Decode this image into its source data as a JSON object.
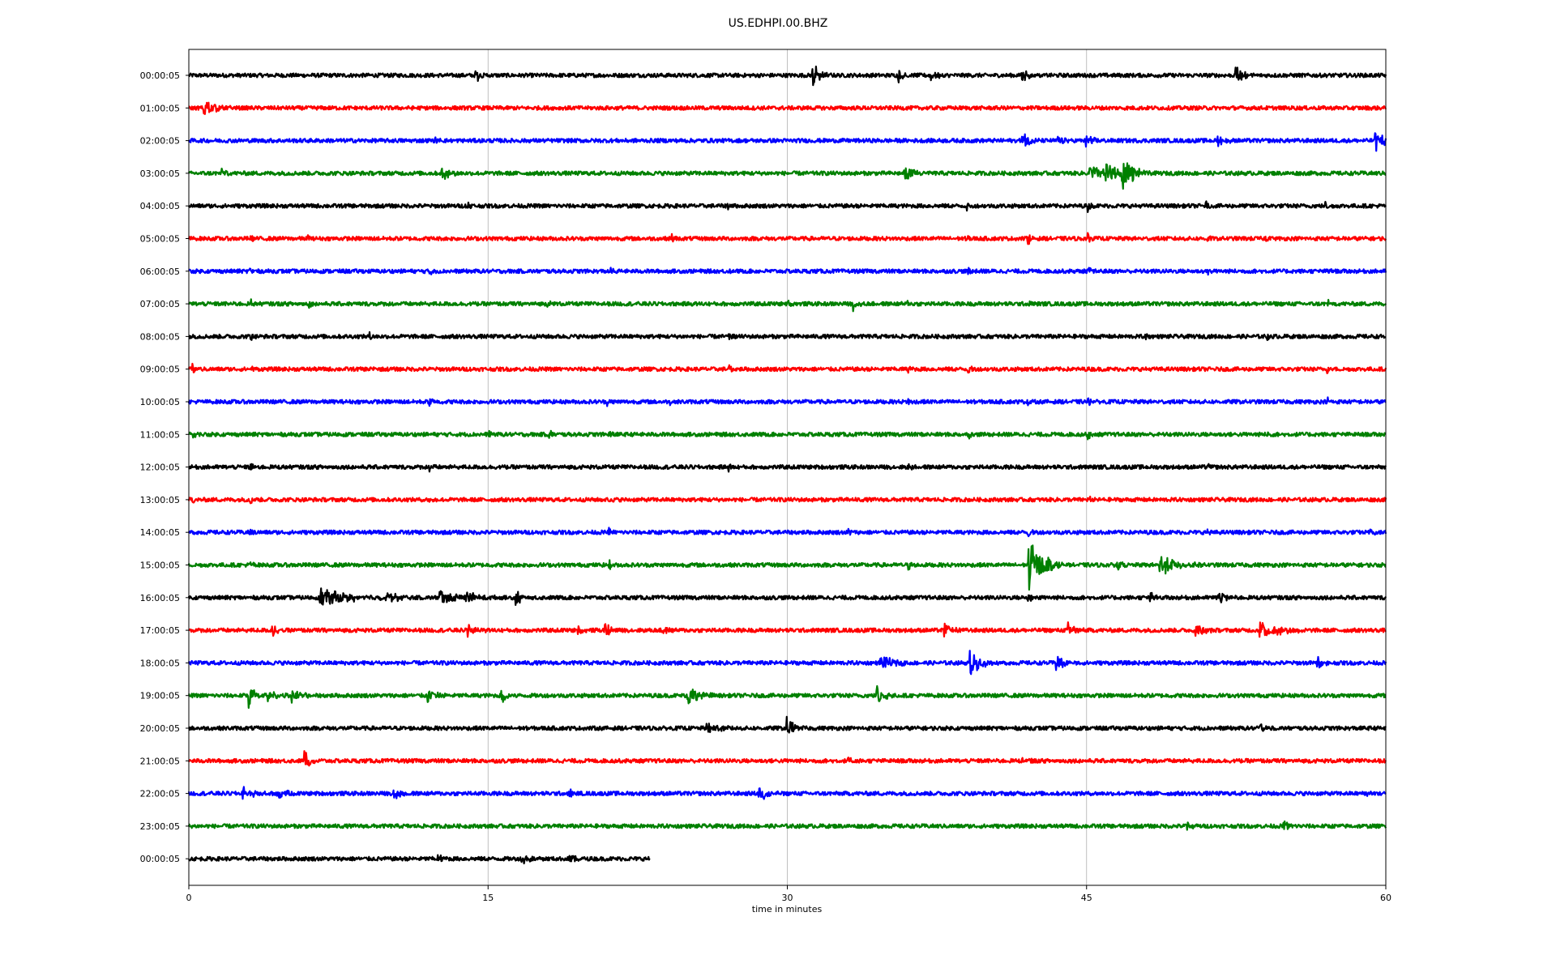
{
  "chart_data": {
    "type": "line",
    "title": "US.EDHPI.00.BHZ",
    "xlabel": "time in minutes",
    "ylabel": "",
    "xlim": [
      0,
      60
    ],
    "xticks": [
      0,
      15,
      30,
      45,
      60
    ],
    "xtick_labels": [
      "0",
      "15",
      "30",
      "45",
      "60"
    ],
    "grid": "vertical gridlines at x ticks",
    "colors": [
      "#000000",
      "#ff0000",
      "#0000ff",
      "#008000"
    ],
    "traces": [
      {
        "label": "00:00:05",
        "color": "#000000",
        "x_end": 60,
        "noise": 0.35,
        "events": [
          [
            14.4,
            1.2,
            0.2
          ],
          [
            31.3,
            2.2,
            0.3
          ],
          [
            35.6,
            1.0,
            0.3
          ],
          [
            37.2,
            1.0,
            0.3
          ],
          [
            41.7,
            1.0,
            0.4
          ],
          [
            52.5,
            1.6,
            0.3
          ]
        ]
      },
      {
        "label": "01:00:05",
        "color": "#ff0000",
        "x_end": 60,
        "noise": 0.35,
        "events": [
          [
            0.8,
            1.8,
            0.5
          ]
        ]
      },
      {
        "label": "02:00:05",
        "color": "#0000ff",
        "x_end": 60,
        "noise": 0.35,
        "events": [
          [
            12.4,
            0.8,
            0.1
          ],
          [
            41.8,
            1.4,
            0.3
          ],
          [
            43.6,
            0.9,
            0.2
          ],
          [
            45.0,
            1.4,
            0.2
          ],
          [
            51.6,
            1.2,
            0.3
          ],
          [
            59.5,
            1.8,
            0.4
          ]
        ]
      },
      {
        "label": "03:00:05",
        "color": "#008000",
        "x_end": 60,
        "noise": 0.35,
        "events": [
          [
            1.7,
            1.0,
            0.1
          ],
          [
            12.7,
            1.2,
            0.3
          ],
          [
            35.9,
            1.1,
            0.4
          ],
          [
            45.2,
            1.4,
            0.6
          ],
          [
            46.0,
            1.8,
            0.5
          ],
          [
            46.8,
            5.0,
            0.3
          ],
          [
            47.3,
            1.6,
            0.3
          ]
        ]
      },
      {
        "label": "04:00:05",
        "color": "#000000",
        "x_end": 60,
        "noise": 0.35,
        "events": [
          [
            14.0,
            0.7,
            0.1
          ],
          [
            27.0,
            0.8,
            0.1
          ],
          [
            39.0,
            0.8,
            0.1
          ],
          [
            45.1,
            0.9,
            0.1
          ],
          [
            51.0,
            0.7,
            0.1
          ],
          [
            57.0,
            0.7,
            0.1
          ]
        ]
      },
      {
        "label": "05:00:05",
        "color": "#ff0000",
        "x_end": 60,
        "noise": 0.35,
        "events": [
          [
            3.1,
            0.8,
            0.1
          ],
          [
            6.0,
            0.7,
            0.1
          ],
          [
            24.2,
            0.8,
            0.1
          ],
          [
            39.0,
            0.6,
            0.1
          ],
          [
            42.1,
            0.8,
            0.1
          ],
          [
            45.1,
            0.9,
            0.1
          ],
          [
            51.1,
            0.8,
            0.1
          ],
          [
            54.0,
            0.6,
            0.1
          ]
        ]
      },
      {
        "label": "06:00:05",
        "color": "#0000ff",
        "x_end": 60,
        "noise": 0.35,
        "events": [
          [
            3.1,
            0.7,
            0.1
          ],
          [
            12.1,
            0.8,
            0.1
          ],
          [
            21.1,
            0.8,
            0.1
          ],
          [
            27.1,
            0.6,
            0.1
          ],
          [
            39.1,
            0.8,
            0.1
          ],
          [
            45.1,
            0.8,
            0.1
          ],
          [
            51.1,
            0.6,
            0.1
          ],
          [
            57.1,
            0.7,
            0.1
          ]
        ]
      },
      {
        "label": "07:00:05",
        "color": "#008000",
        "x_end": 60,
        "noise": 0.35,
        "events": [
          [
            3.1,
            0.8,
            0.1
          ],
          [
            6.0,
            0.6,
            0.1
          ],
          [
            18.0,
            0.6,
            0.1
          ],
          [
            30.1,
            0.7,
            0.1
          ],
          [
            33.3,
            1.0,
            0.2
          ],
          [
            36.0,
            0.6,
            0.1
          ],
          [
            42.1,
            0.7,
            0.1
          ],
          [
            57.1,
            0.6,
            0.1
          ]
        ]
      },
      {
        "label": "08:00:05",
        "color": "#000000",
        "x_end": 60,
        "noise": 0.35,
        "events": [
          [
            3.1,
            0.8,
            0.1
          ],
          [
            9.1,
            0.6,
            0.1
          ],
          [
            27.1,
            0.7,
            0.1
          ],
          [
            48.0,
            0.6,
            0.1
          ],
          [
            54.1,
            0.7,
            0.1
          ]
        ]
      },
      {
        "label": "09:00:05",
        "color": "#ff0000",
        "x_end": 60,
        "noise": 0.35,
        "events": [
          [
            0.2,
            0.9,
            0.1
          ],
          [
            3.1,
            0.6,
            0.1
          ],
          [
            9.1,
            0.6,
            0.1
          ],
          [
            27.1,
            0.7,
            0.1
          ],
          [
            36.1,
            0.6,
            0.1
          ],
          [
            39.1,
            0.8,
            0.1
          ],
          [
            57.1,
            0.6,
            0.1
          ]
        ]
      },
      {
        "label": "10:00:05",
        "color": "#0000ff",
        "x_end": 60,
        "noise": 0.35,
        "events": [
          [
            12.1,
            0.9,
            0.1
          ],
          [
            21.0,
            0.6,
            0.1
          ],
          [
            24.1,
            0.6,
            0.1
          ],
          [
            36.1,
            0.7,
            0.1
          ],
          [
            42.1,
            0.6,
            0.1
          ],
          [
            45.1,
            0.6,
            0.1
          ],
          [
            57.1,
            0.6,
            0.1
          ]
        ]
      },
      {
        "label": "11:00:05",
        "color": "#008000",
        "x_end": 60,
        "noise": 0.35,
        "events": [
          [
            0.2,
            0.9,
            0.1
          ],
          [
            15.1,
            0.6,
            0.1
          ],
          [
            18.1,
            0.8,
            0.1
          ],
          [
            21.1,
            0.8,
            0.1
          ],
          [
            39.1,
            0.7,
            0.1
          ],
          [
            45.1,
            0.8,
            0.1
          ],
          [
            54.1,
            0.7,
            0.1
          ]
        ]
      },
      {
        "label": "12:00:05",
        "color": "#000000",
        "x_end": 60,
        "noise": 0.35,
        "events": [
          [
            3.1,
            0.6,
            0.1
          ],
          [
            12.1,
            0.6,
            0.1
          ],
          [
            27.1,
            0.6,
            0.1
          ],
          [
            36.1,
            0.8,
            0.1
          ],
          [
            51.1,
            0.6,
            0.1
          ]
        ]
      },
      {
        "label": "13:00:05",
        "color": "#ff0000",
        "x_end": 60,
        "noise": 0.35,
        "events": [
          [
            0.2,
            0.7,
            0.1
          ],
          [
            3.1,
            0.7,
            0.1
          ],
          [
            12.1,
            0.7,
            0.1
          ],
          [
            21.1,
            0.6,
            0.1
          ],
          [
            33.1,
            0.6,
            0.1
          ],
          [
            45.1,
            0.6,
            0.1
          ]
        ]
      },
      {
        "label": "14:00:05",
        "color": "#0000ff",
        "x_end": 60,
        "noise": 0.35,
        "events": [
          [
            3.1,
            0.6,
            0.1
          ],
          [
            21.1,
            0.6,
            0.1
          ],
          [
            33.1,
            0.6,
            0.1
          ],
          [
            42.1,
            0.8,
            0.1
          ],
          [
            51.1,
            0.6,
            0.1
          ],
          [
            59.1,
            0.6,
            0.2
          ]
        ]
      },
      {
        "label": "15:00:05",
        "color": "#008000",
        "x_end": 60,
        "noise": 0.35,
        "events": [
          [
            3.1,
            0.7,
            0.1
          ],
          [
            21.1,
            0.7,
            0.1
          ],
          [
            36.1,
            0.7,
            0.1
          ],
          [
            42.1,
            5.0,
            0.5
          ],
          [
            43.0,
            1.6,
            0.4
          ],
          [
            46.5,
            1.0,
            0.2
          ],
          [
            48.7,
            1.8,
            0.7
          ]
        ]
      },
      {
        "label": "16:00:05",
        "color": "#000000",
        "x_end": 60,
        "noise": 0.35,
        "events": [
          [
            6.6,
            1.6,
            1.2
          ],
          [
            9.9,
            1.0,
            0.5
          ],
          [
            12.6,
            1.6,
            0.6
          ],
          [
            13.8,
            1.1,
            0.6
          ],
          [
            16.4,
            1.4,
            0.3
          ],
          [
            42.1,
            1.2,
            0.2
          ],
          [
            48.2,
            1.2,
            0.2
          ],
          [
            51.6,
            1.4,
            0.3
          ]
        ]
      },
      {
        "label": "17:00:05",
        "color": "#ff0000",
        "x_end": 60,
        "noise": 0.35,
        "events": [
          [
            4.2,
            1.2,
            0.2
          ],
          [
            14.0,
            1.3,
            0.3
          ],
          [
            19.5,
            1.0,
            0.2
          ],
          [
            20.9,
            1.3,
            0.2
          ],
          [
            23.7,
            1.3,
            0.2
          ],
          [
            37.9,
            1.2,
            0.3
          ],
          [
            44.1,
            1.2,
            0.3
          ],
          [
            50.5,
            1.4,
            0.3
          ],
          [
            53.7,
            1.6,
            0.8
          ]
        ]
      },
      {
        "label": "18:00:05",
        "color": "#0000ff",
        "x_end": 60,
        "noise": 0.35,
        "events": [
          [
            34.7,
            1.4,
            0.5
          ],
          [
            39.2,
            2.2,
            0.5
          ],
          [
            43.5,
            1.4,
            0.4
          ],
          [
            56.6,
            0.9,
            0.2
          ]
        ]
      },
      {
        "label": "19:00:05",
        "color": "#008000",
        "x_end": 60,
        "noise": 0.35,
        "events": [
          [
            3.0,
            2.0,
            0.3
          ],
          [
            4.0,
            1.0,
            0.3
          ],
          [
            5.1,
            1.2,
            0.4
          ],
          [
            12.0,
            1.4,
            0.3
          ],
          [
            15.7,
            1.2,
            0.3
          ],
          [
            25.0,
            1.8,
            0.5
          ],
          [
            34.5,
            1.8,
            0.3
          ]
        ]
      },
      {
        "label": "20:00:05",
        "color": "#000000",
        "x_end": 60,
        "noise": 0.35,
        "events": [
          [
            26.0,
            1.2,
            0.4
          ],
          [
            30.0,
            2.0,
            0.3
          ],
          [
            53.7,
            0.8,
            0.2
          ]
        ]
      },
      {
        "label": "21:00:05",
        "color": "#ff0000",
        "x_end": 60,
        "noise": 0.35,
        "events": [
          [
            5.8,
            1.6,
            0.3
          ],
          [
            33.0,
            0.6,
            0.2
          ],
          [
            41.8,
            0.7,
            0.2
          ]
        ]
      },
      {
        "label": "22:00:05",
        "color": "#0000ff",
        "x_end": 60,
        "noise": 0.35,
        "events": [
          [
            2.7,
            1.2,
            0.4
          ],
          [
            4.4,
            1.2,
            0.3
          ],
          [
            10.3,
            1.2,
            0.3
          ],
          [
            19.1,
            0.8,
            0.2
          ],
          [
            28.6,
            1.6,
            0.4
          ],
          [
            59.0,
            0.8,
            0.2
          ]
        ]
      },
      {
        "label": "23:00:05",
        "color": "#008000",
        "x_end": 60,
        "noise": 0.35,
        "events": [
          [
            50.0,
            1.0,
            0.2
          ],
          [
            54.9,
            1.0,
            0.2
          ]
        ]
      },
      {
        "label": "00:00:05",
        "color": "#000000",
        "x_end": 23.1,
        "noise": 0.35,
        "events": [
          [
            12.5,
            0.8,
            0.2
          ],
          [
            16.7,
            1.0,
            0.3
          ],
          [
            19.1,
            0.9,
            0.3
          ]
        ]
      }
    ]
  }
}
